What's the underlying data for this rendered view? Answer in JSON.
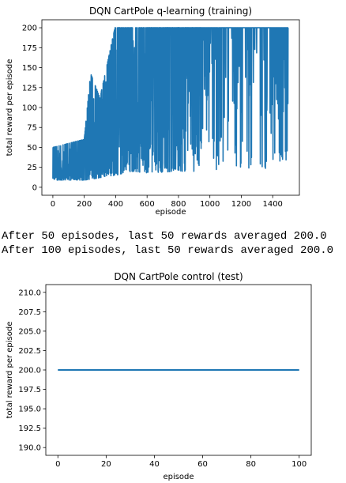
{
  "chart_data": [
    {
      "type": "line",
      "title": "DQN CartPole q-learning (training)",
      "xlabel": "episode",
      "ylabel": "total reward per episode",
      "xlim": [
        -70,
        1570
      ],
      "ylim": [
        -10,
        210
      ],
      "xticks": [
        0,
        200,
        400,
        600,
        800,
        1000,
        1200,
        1400
      ],
      "yticks": [
        0,
        25,
        50,
        75,
        100,
        125,
        150,
        175,
        200
      ],
      "xtick_labels": [
        "0",
        "200",
        "400",
        "600",
        "800",
        "1000",
        "1200",
        "1400"
      ],
      "ytick_labels": [
        "0",
        "25",
        "50",
        "75",
        "100",
        "125",
        "150",
        "175",
        "200"
      ],
      "series_color": "#1f77b4",
      "grid": false,
      "x_range": [
        0,
        1499
      ],
      "trend_summary": [
        {
          "x": 0,
          "low": 9,
          "high": 50
        },
        {
          "x": 100,
          "low": 9,
          "high": 55
        },
        {
          "x": 200,
          "low": 9,
          "high": 60
        },
        {
          "x": 240,
          "low": 10,
          "high": 143
        },
        {
          "x": 300,
          "low": 12,
          "high": 112
        },
        {
          "x": 395,
          "low": 15,
          "high": 200
        },
        {
          "x": 500,
          "low": 20,
          "high": 200
        },
        {
          "x": 600,
          "low": 18,
          "high": 200
        },
        {
          "x": 800,
          "low": 20,
          "high": 200
        },
        {
          "x": 1000,
          "low": 20,
          "high": 200
        },
        {
          "x": 1200,
          "low": 25,
          "high": 200
        },
        {
          "x": 1380,
          "low": 18,
          "high": 200
        },
        {
          "x": 1499,
          "low": 36,
          "high": 200
        }
      ]
    },
    {
      "type": "line",
      "title": "DQN CartPole control (test)",
      "xlabel": "episode",
      "ylabel": "total reward per episode",
      "xlim": [
        -5,
        105
      ],
      "ylim": [
        189,
        211
      ],
      "xticks": [
        0,
        20,
        40,
        60,
        80,
        100
      ],
      "yticks": [
        190.0,
        192.5,
        195.0,
        197.5,
        200.0,
        202.5,
        205.0,
        207.5,
        210.0
      ],
      "xtick_labels": [
        "0",
        "20",
        "40",
        "60",
        "80",
        "100"
      ],
      "ytick_labels": [
        "190.0",
        "192.5",
        "195.0",
        "197.5",
        "200.0",
        "202.5",
        "205.0",
        "207.5",
        "210.0"
      ],
      "series_color": "#1f77b4",
      "grid": false,
      "x": [
        0,
        100
      ],
      "y": [
        200,
        200
      ]
    }
  ],
  "output_lines": [
    "After 50 episodes, last 50 rewards averaged 200.0",
    "After 100 episodes, last 50 rewards averaged 200.0"
  ]
}
